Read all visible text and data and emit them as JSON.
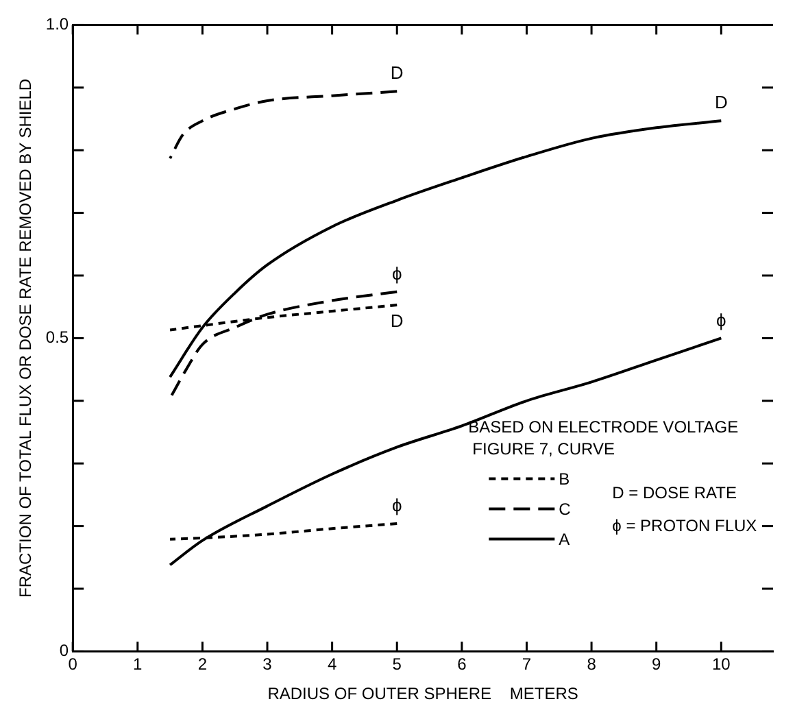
{
  "chart_data": {
    "type": "line",
    "xlabel": "RADIUS OF OUTER SPHERE    METERS",
    "ylabel": "FRACTION OF TOTAL FLUX OR DOSE RATE REMOVED BY SHIELD",
    "xlim": [
      0,
      10.8
    ],
    "xticks": [
      0,
      1,
      2,
      3,
      4,
      5,
      6,
      7,
      8,
      9,
      10
    ],
    "ylim": [
      0,
      1
    ],
    "yticks": [
      {
        "value": 0,
        "label": "0"
      },
      {
        "value": 0.1,
        "label": null
      },
      {
        "value": 0.2,
        "label": null
      },
      {
        "value": 0.3,
        "label": null
      },
      {
        "value": 0.4,
        "label": null
      },
      {
        "value": 0.5,
        "label": "0.5"
      },
      {
        "value": 0.6,
        "label": null
      },
      {
        "value": 0.7,
        "label": null
      },
      {
        "value": 0.8,
        "label": null
      },
      {
        "value": 0.9,
        "label": null
      },
      {
        "value": 1,
        "label": "1.0"
      }
    ],
    "grid": false,
    "legend": false,
    "marker": "none",
    "annotations": [
      "BASED ON ELECTRODE VOLTAGE",
      "FIGURE 7, CURVE",
      "B",
      "C",
      "A",
      "D = DOSE RATE",
      "ϕ = PROTON FLUX"
    ],
    "series": [
      {
        "name": "D",
        "color": "#000000",
        "line_style": "dotted",
        "x": [
          1.5,
          2,
          3,
          4,
          5
        ],
        "values": [
          0.513,
          0.52,
          0.533,
          0.543,
          0.553
        ]
      },
      {
        "name": "ϕ",
        "color": "#000000",
        "line_style": "dotted",
        "x": [
          1.5,
          2,
          3,
          4,
          5
        ],
        "values": [
          0.179,
          0.181,
          0.187,
          0.196,
          0.204
        ]
      },
      {
        "name": "D",
        "color": "#000000",
        "line_style": "dashed",
        "x": [
          1.5,
          1.7,
          2,
          2.5,
          3,
          4,
          5
        ],
        "values": [
          0.787,
          0.825,
          0.847,
          0.866,
          0.879,
          0.887,
          0.894
        ]
      },
      {
        "name": "ϕ",
        "color": "#000000",
        "line_style": "dashed",
        "x": [
          1.5,
          1.75,
          2,
          2.5,
          3,
          4,
          5
        ],
        "values": [
          0.404,
          0.45,
          0.49,
          0.517,
          0.538,
          0.56,
          0.574
        ]
      },
      {
        "name": "D",
        "color": "#000000",
        "line_style": "solid",
        "x": [
          1.5,
          2,
          2.5,
          3,
          4,
          5,
          6,
          7,
          8,
          9,
          10
        ],
        "values": [
          0.438,
          0.517,
          0.572,
          0.617,
          0.678,
          0.72,
          0.756,
          0.79,
          0.819,
          0.836,
          0.847
        ]
      },
      {
        "name": "ϕ",
        "color": "#000000",
        "line_style": "solid",
        "x": [
          1.5,
          2,
          3,
          4,
          5,
          6,
          7,
          8,
          9,
          10
        ],
        "values": [
          0.138,
          0.177,
          0.232,
          0.283,
          0.326,
          0.36,
          0.4,
          0.43,
          0.465,
          0.5
        ]
      }
    ]
  }
}
